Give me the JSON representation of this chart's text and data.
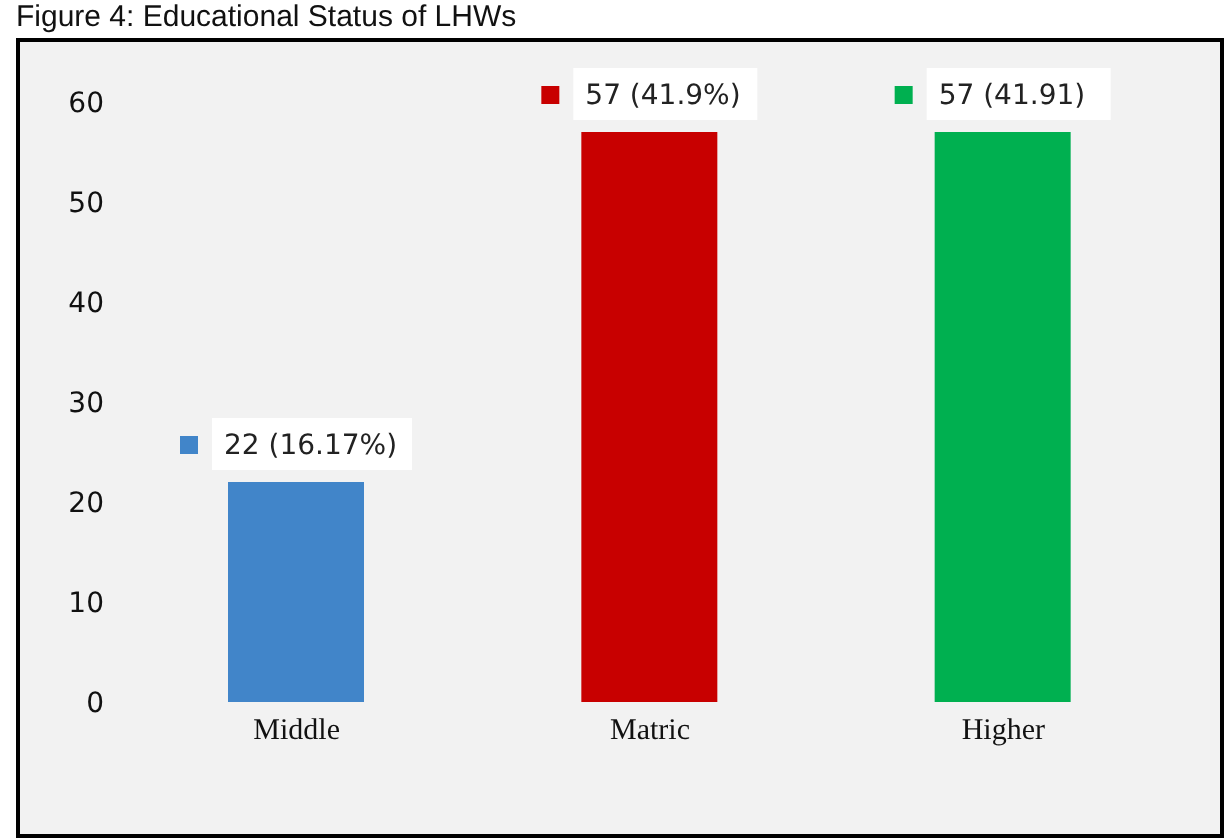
{
  "chart_data": {
    "type": "bar",
    "title": "Figure 4: Educational Status of LHWs",
    "categories": [
      "Middle",
      "Matric",
      "Higher"
    ],
    "values": [
      22,
      57,
      57
    ],
    "colors": [
      "#4185c9",
      "#c80000",
      "#00b050"
    ],
    "value_labels": [
      "22 (16.17%)",
      "57 (41.9%)",
      "57 (41.91)"
    ],
    "ylim": [
      0,
      60
    ],
    "yticks": [
      0,
      10,
      20,
      30,
      40,
      50,
      60
    ],
    "grid": false
  }
}
